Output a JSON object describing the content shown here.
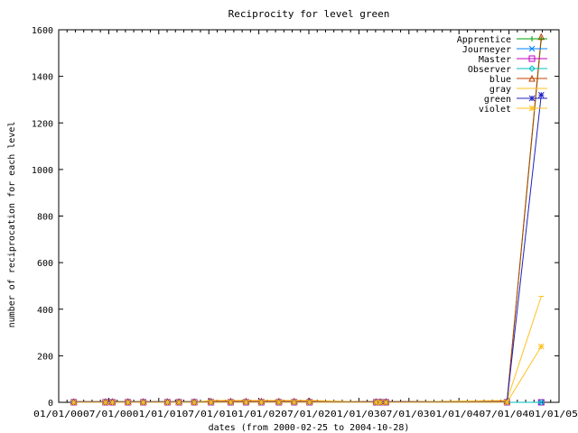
{
  "chart_data": {
    "type": "line",
    "title": "Reciprocity for level green",
    "xlabel": "dates (from 2000-02-25 to 2004-10-28)",
    "ylabel": "number of reciprocation for each level",
    "xlim": [
      "2000-01-01",
      "2005-01-01"
    ],
    "ylim": [
      0,
      1600
    ],
    "x_ticks": [
      "01/01/00",
      "07/01/00",
      "01/01/01",
      "07/01/01",
      "01/01/02",
      "07/01/02",
      "01/01/03",
      "07/01/03",
      "01/01/04",
      "07/01/04",
      "01/01/05"
    ],
    "x_tick_text": "01/01/0007/01/0001/01/0107/01/0101/01/0207/01/0201/01/0307/01/0301/01/0407/01/0401/01/05",
    "y_ticks": [
      0,
      200,
      400,
      600,
      800,
      1000,
      1200,
      1400,
      1600
    ],
    "grid": false,
    "legend_position": "top-right",
    "series": [
      {
        "name": "Apprentice",
        "color": "#00a000",
        "marker": "plus",
        "x": [
          "2000-02-25",
          "2000-06-20",
          "2000-07-15",
          "2000-09-10",
          "2000-11-05",
          "2001-02-01",
          "2001-03-15",
          "2001-05-10",
          "2001-07-10",
          "2001-09-20",
          "2001-11-15",
          "2002-01-10",
          "2002-03-15",
          "2002-05-10",
          "2002-07-05",
          "2003-03-05",
          "2003-03-20",
          "2003-04-10",
          "2004-06-25",
          "2004-10-28"
        ],
        "y": [
          3,
          3,
          3,
          3,
          3,
          3,
          3,
          3,
          3,
          3,
          3,
          3,
          3,
          3,
          3,
          3,
          3,
          3,
          3,
          1560
        ]
      },
      {
        "name": "Journeyer",
        "color": "#0080ff",
        "marker": "x",
        "x": [
          "2000-02-25",
          "2000-06-20",
          "2000-07-15",
          "2000-09-10",
          "2000-11-05",
          "2001-02-01",
          "2001-03-15",
          "2001-05-10",
          "2001-07-10",
          "2001-09-20",
          "2001-11-15",
          "2002-01-10",
          "2002-03-15",
          "2002-05-10",
          "2002-07-05",
          "2003-03-05",
          "2003-03-20",
          "2003-04-10",
          "2004-06-25",
          "2004-10-28"
        ],
        "y": [
          0,
          0,
          0,
          0,
          0,
          0,
          0,
          0,
          0,
          0,
          0,
          0,
          0,
          0,
          0,
          0,
          0,
          0,
          0,
          0
        ]
      },
      {
        "name": "Master",
        "color": "#c000c0",
        "marker": "square",
        "x": [
          "2000-02-25",
          "2000-06-20",
          "2000-07-15",
          "2000-09-10",
          "2000-11-05",
          "2001-02-01",
          "2001-03-15",
          "2001-05-10",
          "2001-07-10",
          "2001-09-20",
          "2001-11-15",
          "2002-01-10",
          "2002-03-15",
          "2002-05-10",
          "2002-07-05",
          "2003-03-05",
          "2003-03-20",
          "2003-04-10",
          "2004-06-25",
          "2004-10-28"
        ],
        "y": [
          0,
          0,
          0,
          0,
          0,
          0,
          0,
          0,
          0,
          0,
          0,
          0,
          0,
          0,
          0,
          0,
          0,
          0,
          0,
          0
        ]
      },
      {
        "name": "Observer",
        "color": "#00c0c0",
        "marker": "diamond",
        "x": [
          "2000-02-25",
          "2000-06-20",
          "2000-07-15",
          "2000-09-10",
          "2000-11-05",
          "2001-02-01",
          "2001-03-15",
          "2001-05-10",
          "2001-07-10",
          "2001-09-20",
          "2001-11-15",
          "2002-01-10",
          "2002-03-15",
          "2002-05-10",
          "2002-07-05",
          "2003-03-05",
          "2003-03-20",
          "2003-04-10",
          "2004-06-25",
          "2004-10-28"
        ],
        "y": [
          0,
          0,
          0,
          0,
          0,
          0,
          0,
          0,
          0,
          0,
          0,
          0,
          0,
          0,
          0,
          0,
          0,
          0,
          0,
          0
        ]
      },
      {
        "name": "blue",
        "color": "#c04000",
        "marker": "triangle",
        "x": [
          "2000-02-25",
          "2000-06-20",
          "2000-07-15",
          "2000-09-10",
          "2000-11-05",
          "2001-02-01",
          "2001-03-15",
          "2001-05-10",
          "2001-07-10",
          "2001-09-20",
          "2001-11-15",
          "2002-01-10",
          "2002-03-15",
          "2002-05-10",
          "2002-07-05",
          "2003-03-05",
          "2003-03-20",
          "2003-04-10",
          "2004-06-25",
          "2004-10-28"
        ],
        "y": [
          3,
          3,
          3,
          3,
          3,
          3,
          3,
          3,
          5,
          5,
          5,
          5,
          5,
          5,
          5,
          3,
          3,
          3,
          5,
          1570
        ]
      },
      {
        "name": "gray",
        "color": "#ffc020",
        "marker": "bar",
        "x": [
          "2000-02-25",
          "2000-06-20",
          "2000-07-15",
          "2000-09-10",
          "2000-11-05",
          "2001-02-01",
          "2001-03-15",
          "2001-05-10",
          "2001-07-10",
          "2001-09-20",
          "2001-11-15",
          "2002-01-10",
          "2002-03-15",
          "2002-05-10",
          "2002-07-05",
          "2003-03-05",
          "2003-03-20",
          "2003-04-10",
          "2004-06-25",
          "2004-10-28"
        ],
        "y": [
          1,
          1,
          1,
          1,
          1,
          1,
          1,
          1,
          8,
          8,
          8,
          8,
          8,
          8,
          8,
          1,
          1,
          1,
          8,
          455
        ]
      },
      {
        "name": "green",
        "color": "#2020c0",
        "marker": "star",
        "x": [
          "2000-02-25",
          "2000-06-20",
          "2000-07-15",
          "2000-09-10",
          "2000-11-05",
          "2001-02-01",
          "2001-03-15",
          "2001-05-10",
          "2001-07-10",
          "2001-09-20",
          "2001-11-15",
          "2002-01-10",
          "2002-03-15",
          "2002-05-10",
          "2002-07-05",
          "2003-03-05",
          "2003-03-20",
          "2003-04-10",
          "2004-06-25",
          "2004-10-28"
        ],
        "y": [
          2,
          2,
          2,
          2,
          2,
          2,
          2,
          2,
          2,
          2,
          2,
          2,
          2,
          2,
          2,
          2,
          2,
          2,
          2,
          1320
        ]
      },
      {
        "name": "violet",
        "color": "#ffc020",
        "marker": "star",
        "x": [
          "2000-02-25",
          "2000-06-20",
          "2000-07-15",
          "2000-09-10",
          "2000-11-05",
          "2001-02-01",
          "2001-03-15",
          "2001-05-10",
          "2001-07-10",
          "2001-09-20",
          "2001-11-15",
          "2002-01-10",
          "2002-03-15",
          "2002-05-10",
          "2002-07-05",
          "2003-03-05",
          "2003-03-20",
          "2003-04-10",
          "2004-06-25",
          "2004-10-28"
        ],
        "y": [
          0,
          0,
          0,
          0,
          0,
          0,
          0,
          0,
          0,
          0,
          0,
          0,
          0,
          0,
          0,
          0,
          0,
          0,
          0,
          240
        ]
      }
    ]
  }
}
